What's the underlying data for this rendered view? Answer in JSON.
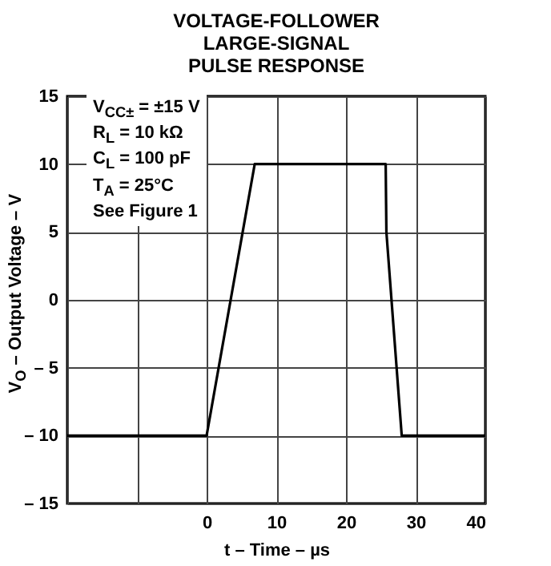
{
  "chart_data": {
    "type": "line",
    "title": "VOLTAGE-FOLLOWER\nLARGE-SIGNAL\nPULSE RESPONSE",
    "xlabel": "t – Time – µs",
    "ylabel": "V$_{O}$ – Output Voltage – V",
    "annotations": [
      "V$_{CC±}$ = ±15 V",
      "R$_{L}$ = 10 kΩ",
      "C$_{L}$ = 100 pF",
      "T$_{A}$ = 25°C",
      "See Figure 1"
    ],
    "x": [
      -20,
      0,
      6.9,
      25.7,
      25.8,
      28,
      40
    ],
    "series": [
      {
        "color": "#000000",
        "values": [
          -10,
          -10,
          10,
          10,
          5,
          -10,
          -10
        ]
      }
    ],
    "xlim": [
      -20,
      40
    ],
    "ylim": [
      -15,
      15
    ],
    "xticks": [
      {
        "value": -20,
        "label": null
      },
      {
        "value": -10,
        "label": null
      },
      0,
      10,
      20,
      30,
      40
    ],
    "yticks": [
      {
        "value": -15,
        "label": "– 15"
      },
      {
        "value": -10,
        "label": "– 10"
      },
      {
        "value": -5,
        "label": "– 5"
      },
      0,
      5,
      10,
      15
    ],
    "grid": true,
    "line_style": "solid"
  }
}
